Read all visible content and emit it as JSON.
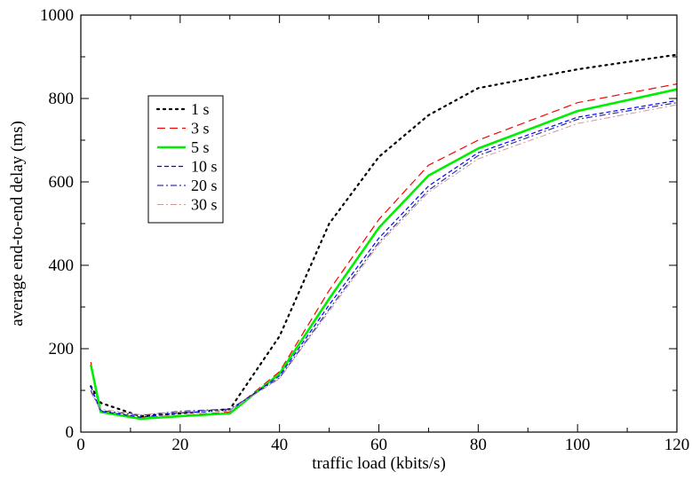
{
  "chart_data": {
    "type": "line",
    "title": "",
    "xlabel": "traffic load (kbits/s)",
    "ylabel": "average end-to-end delay (ms)",
    "xlim": [
      0,
      120
    ],
    "ylim": [
      0,
      1000
    ],
    "xticks": [
      0,
      20,
      40,
      60,
      80,
      100,
      120
    ],
    "yticks": [
      0,
      200,
      400,
      600,
      800,
      1000
    ],
    "x_minor_step": 10,
    "y_minor_step": 100,
    "grid": false,
    "legend_position": "upper-left",
    "series": [
      {
        "name": "1 s",
        "color": "#000000",
        "dash": "dotted",
        "x": [
          2,
          4,
          12,
          20,
          30,
          40,
          50,
          60,
          70,
          80,
          100,
          120
        ],
        "y": [
          110,
          70,
          38,
          45,
          55,
          230,
          500,
          660,
          760,
          825,
          870,
          905
        ]
      },
      {
        "name": "3 s",
        "color": "#ff0000",
        "dash": "dashed",
        "x": [
          2,
          4,
          12,
          20,
          30,
          40,
          50,
          60,
          70,
          80,
          100,
          120
        ],
        "y": [
          168,
          50,
          35,
          40,
          48,
          145,
          340,
          510,
          640,
          700,
          790,
          835
        ]
      },
      {
        "name": "5 s",
        "color": "#00ee00",
        "dash": "solid",
        "x": [
          2,
          4,
          12,
          20,
          30,
          40,
          50,
          60,
          70,
          80,
          100,
          120
        ],
        "y": [
          162,
          48,
          32,
          38,
          45,
          140,
          320,
          490,
          615,
          680,
          770,
          822
        ]
      },
      {
        "name": "10 s",
        "color": "#0000ff",
        "dash": "short-dashed",
        "x": [
          2,
          4,
          12,
          20,
          30,
          40,
          50,
          60,
          70,
          80,
          100,
          120
        ],
        "y": [
          110,
          50,
          36,
          46,
          52,
          135,
          305,
          465,
          590,
          670,
          755,
          795
        ]
      },
      {
        "name": "20 s",
        "color": "#3333aa",
        "dash": "dash-dot",
        "x": [
          2,
          4,
          12,
          20,
          30,
          40,
          50,
          60,
          70,
          80,
          100,
          120
        ],
        "y": [
          100,
          52,
          40,
          50,
          55,
          130,
          295,
          455,
          580,
          663,
          750,
          790
        ]
      },
      {
        "name": "30 s",
        "color": "#cc9999",
        "dash": "dash-dot-light",
        "x": [
          2,
          4,
          12,
          20,
          30,
          40,
          50,
          60,
          70,
          80,
          100,
          120
        ],
        "y": [
          95,
          55,
          42,
          48,
          52,
          128,
          290,
          450,
          575,
          655,
          740,
          785
        ]
      }
    ]
  }
}
